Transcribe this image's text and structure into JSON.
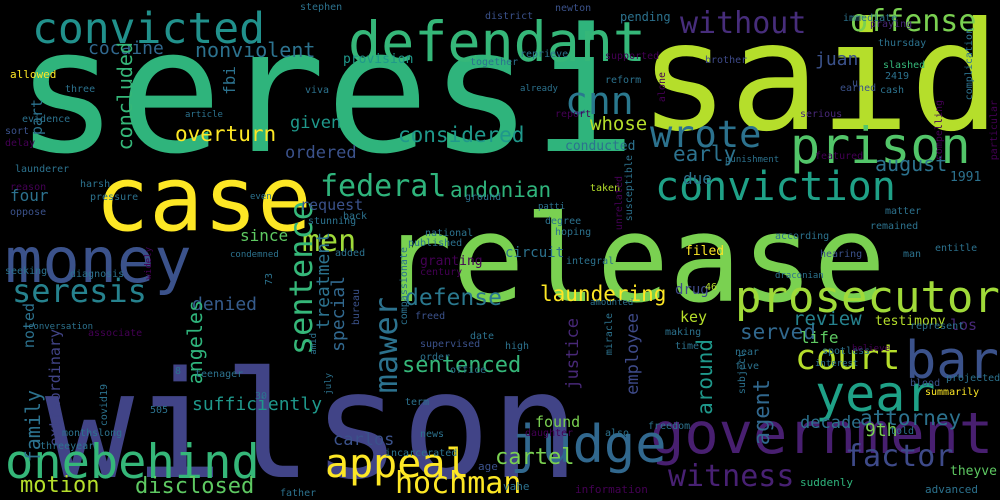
{
  "words": [
    {
      "text": "seresi",
      "color": "#2fb47c"
    },
    {
      "text": "said",
      "color": "#b5de2b"
    },
    {
      "text": "wilson",
      "color": "#414487"
    },
    {
      "text": "release",
      "color": "#7ad151"
    },
    {
      "text": "case",
      "color": "#fde725"
    },
    {
      "text": "money",
      "color": "#3b528b"
    },
    {
      "text": "defendant",
      "color": "#35b779"
    },
    {
      "text": "convicted",
      "color": "#21918c"
    },
    {
      "text": "government",
      "color": "#481f70"
    },
    {
      "text": "judge",
      "color": "#31688e"
    },
    {
      "text": "onebehind",
      "color": "#35b779"
    },
    {
      "text": "bar",
      "color": "#3b528b"
    },
    {
      "text": "prison",
      "color": "#52c569"
    },
    {
      "text": "year",
      "color": "#1fa187"
    },
    {
      "text": "prosecutor",
      "color": "#a0da39"
    },
    {
      "text": "conviction",
      "color": "#1fa187"
    },
    {
      "text": "appeal",
      "color": "#fde725"
    },
    {
      "text": "court",
      "color": "#b5de2b"
    },
    {
      "text": "cnn",
      "color": "#2a788e"
    },
    {
      "text": "wrote",
      "color": "#2c728e"
    },
    {
      "text": "federal",
      "color": "#2fb47c"
    },
    {
      "text": "seresis",
      "color": "#26828e"
    },
    {
      "text": "men",
      "color": "#a0da39"
    },
    {
      "text": "without",
      "color": "#472d7b"
    },
    {
      "text": "offense",
      "color": "#7ad151"
    },
    {
      "text": "factor",
      "color": "#3e4a89"
    },
    {
      "text": "mawer",
      "color": "#2c728e"
    },
    {
      "text": "hochman",
      "color": "#fde725"
    },
    {
      "text": "witness",
      "color": "#482173"
    },
    {
      "text": "sentence",
      "color": "#35b779"
    },
    {
      "text": "defense",
      "color": "#2a788e"
    },
    {
      "text": "laundering",
      "color": "#fde725"
    },
    {
      "text": "cartel",
      "color": "#7ad151"
    },
    {
      "text": "motion",
      "color": "#b5de2b"
    },
    {
      "text": "disclosed",
      "color": "#5ec962"
    },
    {
      "text": "andonian",
      "color": "#2fb47c"
    },
    {
      "text": "overturn",
      "color": "#fde725"
    },
    {
      "text": "considered",
      "color": "#1f988b"
    },
    {
      "text": "given",
      "color": "#1f988b"
    },
    {
      "text": "whose",
      "color": "#b5de2b"
    },
    {
      "text": "early",
      "color": "#2c728e"
    },
    {
      "text": "august",
      "color": "#2c728e"
    },
    {
      "text": "attorney",
      "color": "#2c728e"
    },
    {
      "text": "sentenced",
      "color": "#35b779"
    },
    {
      "text": "served",
      "color": "#31688e"
    },
    {
      "text": "review",
      "color": "#26828e"
    },
    {
      "text": "nonviolent",
      "color": "#2c728e"
    },
    {
      "text": "cocaine",
      "color": "#31688e"
    },
    {
      "text": "concluded",
      "color": "#35b779"
    },
    {
      "text": "denied",
      "color": "#365c8d"
    },
    {
      "text": "angeles",
      "color": "#2fb47c"
    },
    {
      "text": "special",
      "color": "#31688e"
    },
    {
      "text": "treatment",
      "color": "#2c728e"
    },
    {
      "text": "justice",
      "color": "#482878"
    },
    {
      "text": "employee",
      "color": "#3e4a89"
    },
    {
      "text": "carlos",
      "color": "#3b528b"
    },
    {
      "text": "found",
      "color": "#7ad151"
    },
    {
      "text": "around",
      "color": "#1f988b"
    },
    {
      "text": "agent",
      "color": "#31688e"
    },
    {
      "text": "decade",
      "color": "#2c728e"
    },
    {
      "text": "9th",
      "color": "#7ad151"
    },
    {
      "text": "life",
      "color": "#5ec962"
    },
    {
      "text": "juan",
      "color": "#3b528b"
    },
    {
      "text": "four",
      "color": "#2c728e"
    },
    {
      "text": "family",
      "color": "#2c728e"
    },
    {
      "text": "sufficiently",
      "color": "#1f988b"
    },
    {
      "text": "ordered",
      "color": "#3b528b"
    },
    {
      "text": "request",
      "color": "#3b528b"
    },
    {
      "text": "since",
      "color": "#5ec962"
    },
    {
      "text": "noted",
      "color": "#2c728e"
    },
    {
      "text": "extraordinary",
      "color": "#414487"
    },
    {
      "text": "fbi",
      "color": "#2c728e"
    },
    {
      "text": "part",
      "color": "#2c728e"
    },
    {
      "text": "due",
      "color": "#2c728e"
    },
    {
      "text": "key",
      "color": "#b5de2b"
    },
    {
      "text": "drug",
      "color": "#3e4a89"
    },
    {
      "text": "testimony",
      "color": "#b5de2b"
    },
    {
      "text": "los",
      "color": "#482878"
    },
    {
      "text": "filed",
      "color": "#fde725"
    },
    {
      "text": "vahe",
      "color": "#2c728e"
    },
    {
      "text": "age",
      "color": "#3b528b"
    },
    {
      "text": "information",
      "color": "#440154"
    },
    {
      "text": "suddenly",
      "color": "#2fb47c"
    },
    {
      "text": "advanced",
      "color": "#2c728e"
    },
    {
      "text": "theyve",
      "color": "#5ec962"
    },
    {
      "text": "granting",
      "color": "#440154"
    },
    {
      "text": "circuit",
      "color": "#2c728e"
    },
    {
      "text": "provision",
      "color": "#1f988b"
    },
    {
      "text": "allowed",
      "color": "#fde725"
    },
    {
      "text": "pending",
      "color": "#2c728e"
    },
    {
      "text": "brother",
      "color": "#3e4a89"
    },
    {
      "text": "district",
      "color": "#3b528b"
    },
    {
      "text": "newton",
      "color": "#3b528b"
    },
    {
      "text": "stephen",
      "color": "#2c728e"
    },
    {
      "text": "immediate",
      "color": "#2c728e"
    },
    {
      "text": "praying",
      "color": "#482878"
    },
    {
      "text": "thursday",
      "color": "#2c728e"
    },
    {
      "text": "slashed",
      "color": "#35b779"
    },
    {
      "text": "2419",
      "color": "#2c728e"
    },
    {
      "text": "cash",
      "color": "#2c728e"
    },
    {
      "text": "earned",
      "color": "#3b528b"
    },
    {
      "text": "serious",
      "color": "#482878"
    },
    {
      "text": "three",
      "color": "#2c728e"
    },
    {
      "text": "evidence",
      "color": "#2c728e"
    },
    {
      "text": "sort",
      "color": "#3b528b"
    },
    {
      "text": "delay",
      "color": "#440154"
    },
    {
      "text": "launderer",
      "color": "#2c728e"
    },
    {
      "text": "harsh",
      "color": "#2c728e"
    },
    {
      "text": "pressure",
      "color": "#2c728e"
    },
    {
      "text": "oppose",
      "color": "#3b528b"
    },
    {
      "text": "seeking",
      "color": "#2c728e"
    },
    {
      "text": "diagnosis",
      "color": "#2c728e"
    },
    {
      "text": "conversation",
      "color": "#2c728e"
    },
    {
      "text": "associate",
      "color": "#440154"
    },
    {
      "text": "condemned",
      "color": "#2c728e"
    },
    {
      "text": "added",
      "color": "#2c728e"
    },
    {
      "text": "published",
      "color": "#2c728e"
    },
    {
      "text": "national",
      "color": "#2c728e"
    },
    {
      "text": "century",
      "color": "#440154"
    },
    {
      "text": "integral",
      "color": "#2c728e"
    },
    {
      "text": "degree",
      "color": "#2c728e"
    },
    {
      "text": "hoping",
      "color": "#2c728e"
    },
    {
      "text": "patti",
      "color": "#2c728e"
    },
    {
      "text": "together",
      "color": "#2c728e"
    },
    {
      "text": "reprieve",
      "color": "#2c728e"
    },
    {
      "text": "supported",
      "color": "#440154"
    },
    {
      "text": "reform",
      "color": "#2c728e"
    },
    {
      "text": "already",
      "color": "#2c728e"
    },
    {
      "text": "report",
      "color": "#440154"
    },
    {
      "text": "conducted",
      "color": "#2c728e"
    },
    {
      "text": "taken",
      "color": "#b5de2b"
    },
    {
      "text": "punishment",
      "color": "#2c728e"
    },
    {
      "text": "featured",
      "color": "#440154"
    },
    {
      "text": "matter",
      "color": "#2c728e"
    },
    {
      "text": "hearing",
      "color": "#3b528b"
    },
    {
      "text": "remained",
      "color": "#2c728e"
    },
    {
      "text": "entitle",
      "color": "#2c728e"
    },
    {
      "text": "according",
      "color": "#2c728e"
    },
    {
      "text": "draconian",
      "color": "#2c728e"
    },
    {
      "text": "man",
      "color": "#2c728e"
    },
    {
      "text": "46",
      "color": "#b5de2b"
    },
    {
      "text": "amounted",
      "color": "#2c728e"
    },
    {
      "text": "freed",
      "color": "#3b528b"
    },
    {
      "text": "bureau",
      "color": "#3b528b"
    },
    {
      "text": "compassionate",
      "color": "#2c728e"
    },
    {
      "text": "supervised",
      "color": "#3b528b"
    },
    {
      "text": "date",
      "color": "#2c728e"
    },
    {
      "text": "high",
      "color": "#2c728e"
    },
    {
      "text": "order",
      "color": "#2c728e"
    },
    {
      "text": "office",
      "color": "#2c728e"
    },
    {
      "text": "miracle",
      "color": "#2c728e"
    },
    {
      "text": "making",
      "color": "#2c728e"
    },
    {
      "text": "time",
      "color": "#2c728e"
    },
    {
      "text": "near",
      "color": "#2c728e"
    },
    {
      "text": "five",
      "color": "#2c728e"
    },
    {
      "text": "subject",
      "color": "#2c728e"
    },
    {
      "text": "interest",
      "color": "#2c728e"
    },
    {
      "text": "spotless",
      "color": "#2c728e"
    },
    {
      "text": "believe",
      "color": "#440154"
    },
    {
      "text": "represent",
      "color": "#2c728e"
    },
    {
      "text": "projected",
      "color": "#2c728e"
    },
    {
      "text": "blood",
      "color": "#3b528b"
    },
    {
      "text": "summarily",
      "color": "#fde725"
    },
    {
      "text": "teenager",
      "color": "#2c728e"
    },
    {
      "text": "amid",
      "color": "#2c728e"
    },
    {
      "text": "july",
      "color": "#2c728e"
    },
    {
      "text": "term",
      "color": "#2c728e"
    },
    {
      "text": "news",
      "color": "#2c728e"
    },
    {
      "text": "daughter",
      "color": "#440154"
    },
    {
      "text": "also",
      "color": "#2c728e"
    },
    {
      "text": "freedom",
      "color": "#2c728e"
    },
    {
      "text": "told",
      "color": "#2c728e"
    },
    {
      "text": "monthslong",
      "color": "#2c728e"
    },
    {
      "text": "threeyear",
      "color": "#2c728e"
    },
    {
      "text": "father",
      "color": "#2c728e"
    },
    {
      "text": "incarcerated",
      "color": "#2c728e"
    },
    {
      "text": "covid19",
      "color": "#2c728e"
    },
    {
      "text": "505",
      "color": "#2c728e"
    },
    {
      "text": "30",
      "color": "#2c728e"
    },
    {
      "text": "73",
      "color": "#2c728e"
    },
    {
      "text": "8",
      "color": "#2c728e"
    },
    {
      "text": "viva",
      "color": "#2c728e"
    },
    {
      "text": "stunning",
      "color": "#2c728e"
    },
    {
      "text": "back",
      "color": "#2c728e"
    },
    {
      "text": "ground",
      "color": "#2c728e"
    },
    {
      "text": "reason",
      "color": "#440154"
    },
    {
      "text": "even",
      "color": "#2c728e"
    },
    {
      "text": "article",
      "color": "#2c728e"
    },
    {
      "text": "alone",
      "color": "#440154"
    },
    {
      "text": "susceptible",
      "color": "#2c728e"
    },
    {
      "text": "unrelated",
      "color": "#440154"
    },
    {
      "text": "widely",
      "color": "#440154"
    },
    {
      "text": "compelling",
      "color": "#440154"
    },
    {
      "text": "particular",
      "color": "#440154"
    },
    {
      "text": "complication",
      "color": "#2c728e"
    },
    {
      "text": "1991",
      "color": "#2c728e"
    },
    {
      "text": "u",
      "color": "#3b528b"
    },
    {
      "text": "v",
      "color": "#2c728e"
    }
  ]
}
